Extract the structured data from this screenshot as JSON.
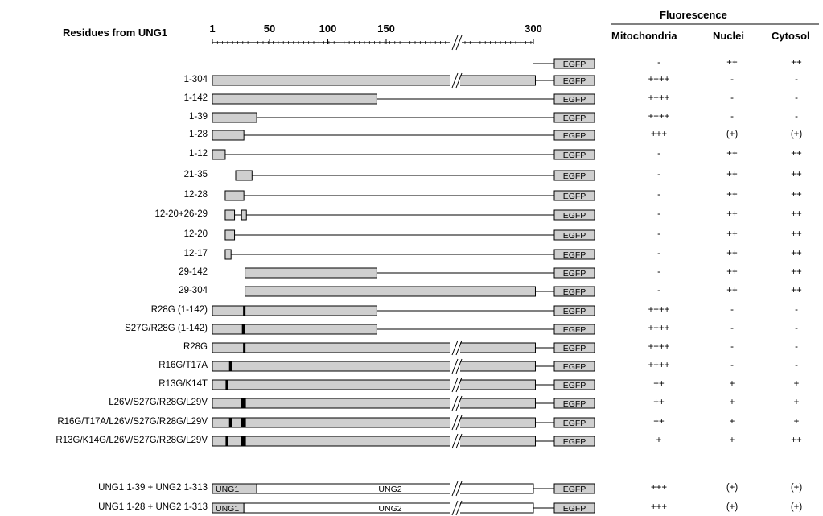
{
  "header": {
    "axis_title": "Residues from UNG1",
    "ticks": [
      "1",
      "50",
      "100",
      "150",
      "300"
    ],
    "fluorescence": "Fluorescence",
    "columns": [
      "Mitochondria",
      "Nuclei",
      "Cytosol"
    ]
  },
  "colors": {
    "fill": "#cfcfcf",
    "mutation": "#000000"
  },
  "fusion_label": "EGFP",
  "rows": [
    {
      "label": "",
      "segments": [],
      "gap": false,
      "mutations": [],
      "mito": "-",
      "nuc": "++",
      "cyt": "++"
    },
    {
      "label": "1-304",
      "segments": [
        [
          1,
          304
        ]
      ],
      "gap": true,
      "mutations": [],
      "mito": "++++",
      "nuc": "-",
      "cyt": "-"
    },
    {
      "label": "1-142",
      "segments": [
        [
          1,
          142
        ]
      ],
      "gap": false,
      "mutations": [],
      "mito": "++++",
      "nuc": "-",
      "cyt": "-"
    },
    {
      "label": "1-39",
      "segments": [
        [
          1,
          39
        ]
      ],
      "gap": false,
      "mutations": [],
      "mito": "++++",
      "nuc": "-",
      "cyt": "-"
    },
    {
      "label": "1-28",
      "segments": [
        [
          1,
          28
        ]
      ],
      "gap": false,
      "mutations": [],
      "mito": "+++",
      "nuc": "(+)",
      "cyt": "(+)"
    },
    {
      "label": "1-12",
      "segments": [
        [
          1,
          12
        ]
      ],
      "gap": false,
      "mutations": [],
      "mito": "-",
      "nuc": "++",
      "cyt": "++"
    },
    {
      "label": "21-35",
      "segments": [
        [
          21,
          35
        ]
      ],
      "gap": false,
      "mutations": [],
      "mito": "-",
      "nuc": "++",
      "cyt": "++"
    },
    {
      "label": "12-28",
      "segments": [
        [
          12,
          28
        ]
      ],
      "gap": false,
      "mutations": [],
      "mito": "-",
      "nuc": "++",
      "cyt": "++"
    },
    {
      "label": "12-20+26-29",
      "segments": [
        [
          12,
          20
        ],
        [
          26,
          29
        ]
      ],
      "gap": false,
      "mutations": [],
      "mito": "-",
      "nuc": "++",
      "cyt": "++"
    },
    {
      "label": "12-20",
      "segments": [
        [
          12,
          20
        ]
      ],
      "gap": false,
      "mutations": [],
      "mito": "-",
      "nuc": "++",
      "cyt": "++"
    },
    {
      "label": "12-17",
      "segments": [
        [
          12,
          17
        ]
      ],
      "gap": false,
      "mutations": [],
      "mito": "-",
      "nuc": "++",
      "cyt": "++"
    },
    {
      "label": "29-142",
      "segments": [
        [
          29,
          142
        ]
      ],
      "gap": false,
      "mutations": [],
      "mito": "-",
      "nuc": "++",
      "cyt": "++"
    },
    {
      "label": "29-304",
      "segments": [
        [
          29,
          304
        ]
      ],
      "gap": false,
      "mutations": [],
      "mito": "-",
      "nuc": "++",
      "cyt": "++"
    },
    {
      "label": "R28G (1-142)",
      "segments": [
        [
          1,
          142
        ]
      ],
      "gap": false,
      "mutations": [
        [
          28,
          28
        ]
      ],
      "mito": "++++",
      "nuc": "-",
      "cyt": "-"
    },
    {
      "label": "S27G/R28G (1-142)",
      "segments": [
        [
          1,
          142
        ]
      ],
      "gap": false,
      "mutations": [
        [
          27,
          28
        ]
      ],
      "mito": "++++",
      "nuc": "-",
      "cyt": "-"
    },
    {
      "label": "R28G",
      "segments": [
        [
          1,
          304
        ]
      ],
      "gap": true,
      "mutations": [
        [
          28,
          28
        ]
      ],
      "mito": "++++",
      "nuc": "-",
      "cyt": "-"
    },
    {
      "label": "R16G/T17A",
      "segments": [
        [
          1,
          304
        ]
      ],
      "gap": true,
      "mutations": [
        [
          16,
          17
        ]
      ],
      "mito": "++++",
      "nuc": "-",
      "cyt": "-"
    },
    {
      "label": "R13G/K14T",
      "segments": [
        [
          1,
          304
        ]
      ],
      "gap": true,
      "mutations": [
        [
          13,
          14
        ]
      ],
      "mito": "++",
      "nuc": "+",
      "cyt": "+"
    },
    {
      "label": "L26V/S27G/R28G/L29V",
      "segments": [
        [
          1,
          304
        ]
      ],
      "gap": true,
      "mutations": [
        [
          26,
          29
        ]
      ],
      "mito": "++",
      "nuc": "+",
      "cyt": "+"
    },
    {
      "label": "R16G/T17A/L26V/S27G/R28G/L29V",
      "segments": [
        [
          1,
          304
        ]
      ],
      "gap": true,
      "mutations": [
        [
          16,
          17
        ],
        [
          26,
          29
        ]
      ],
      "mito": "++",
      "nuc": "+",
      "cyt": "+"
    },
    {
      "label": "R13G/K14G/L26V/S27G/R28G/L29V",
      "segments": [
        [
          1,
          304
        ]
      ],
      "gap": true,
      "mutations": [
        [
          13,
          14
        ],
        [
          26,
          29
        ]
      ],
      "mito": "+",
      "nuc": "+",
      "cyt": "++"
    }
  ],
  "chimeras": [
    {
      "label": "UNG1 1-39 + UNG2 1-313",
      "ung1_label": "UNG1",
      "ung2_label": "UNG2",
      "ung1_end": 39,
      "mito": "+++",
      "nuc": "(+)",
      "cyt": "(+)"
    },
    {
      "label": "UNG1 1-28 + UNG2 1-313",
      "ung1_label": "UNG1",
      "ung2_label": "UNG2",
      "ung1_end": 28,
      "mito": "+++",
      "nuc": "(+)",
      "cyt": "(+)"
    }
  ]
}
